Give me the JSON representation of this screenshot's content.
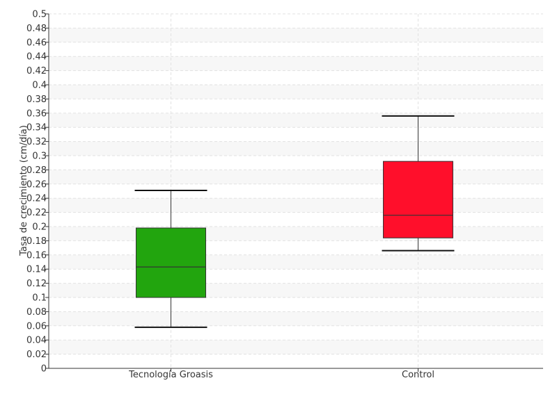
{
  "chart_data": {
    "type": "box",
    "title": "",
    "xlabel": "",
    "ylabel": "Tasa de crecimiento (cm/día)",
    "ylim": [
      0,
      0.5
    ],
    "ytick_step": 0.02,
    "grid": true,
    "categories": [
      "Tecnología Groasis",
      "Control"
    ],
    "boxes": [
      {
        "category": "Tecnología Groasis",
        "whisker_low": 0.058,
        "q1": 0.1,
        "median": 0.143,
        "q3": 0.198,
        "whisker_high": 0.251,
        "color": "#22a50e"
      },
      {
        "category": "Control",
        "whisker_low": 0.166,
        "q1": 0.184,
        "median": 0.216,
        "q3": 0.292,
        "whisker_high": 0.356,
        "color": "#ff0f2b"
      }
    ],
    "yticks": [
      "0",
      "0.02",
      "0.04",
      "0.06",
      "0.08",
      "0.1",
      "0.12",
      "0.14",
      "0.16",
      "0.18",
      "0.2",
      "0.22",
      "0.24",
      "0.26",
      "0.28",
      "0.3",
      "0.32",
      "0.34",
      "0.36",
      "0.38",
      "0.4",
      "0.42",
      "0.44",
      "0.46",
      "0.48",
      "0.5"
    ]
  }
}
